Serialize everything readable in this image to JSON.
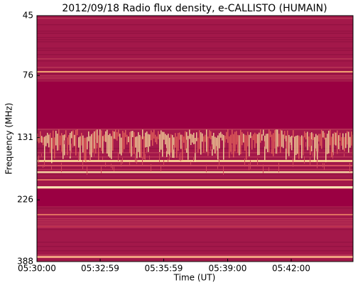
{
  "chart_data": {
    "type": "spectrogram",
    "title": "2012/09/18  Radio flux density, e-CALLISTO (HUMAIN)",
    "xlabel": "Time (UT)",
    "ylabel": "Frequency (MHz)",
    "xlim": [
      "05:30:00",
      "05:44:55"
    ],
    "xticks": [
      "05:30:00",
      "05:32:59",
      "05:35:59",
      "05:39:00",
      "05:42:00"
    ],
    "ylim": [
      388,
      45
    ],
    "yscale": "log",
    "yticks": [
      45,
      76,
      131,
      226,
      388
    ]
  }
}
